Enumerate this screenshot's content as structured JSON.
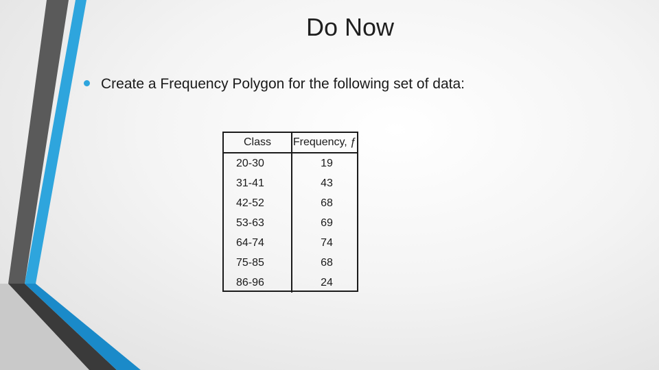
{
  "slide": {
    "title": "Do Now",
    "bullet_text": "Create a Frequency Polygon for the following set of data:"
  },
  "table": {
    "headers": [
      "Class",
      "Frequency, ƒ"
    ],
    "rows": [
      {
        "class": "20-30",
        "frequency": "19"
      },
      {
        "class": "31-41",
        "frequency": "43"
      },
      {
        "class": "42-52",
        "frequency": "68"
      },
      {
        "class": "53-63",
        "frequency": "69"
      },
      {
        "class": "64-74",
        "frequency": "74"
      },
      {
        "class": "75-85",
        "frequency": "68"
      },
      {
        "class": "86-96",
        "frequency": "24"
      }
    ]
  },
  "colors": {
    "accent_blue": "#2ea5dd",
    "accent_dark_blue": "#1a7fbf",
    "accent_gray": "#555555",
    "accent_dark_gray": "#3a3a3a"
  }
}
